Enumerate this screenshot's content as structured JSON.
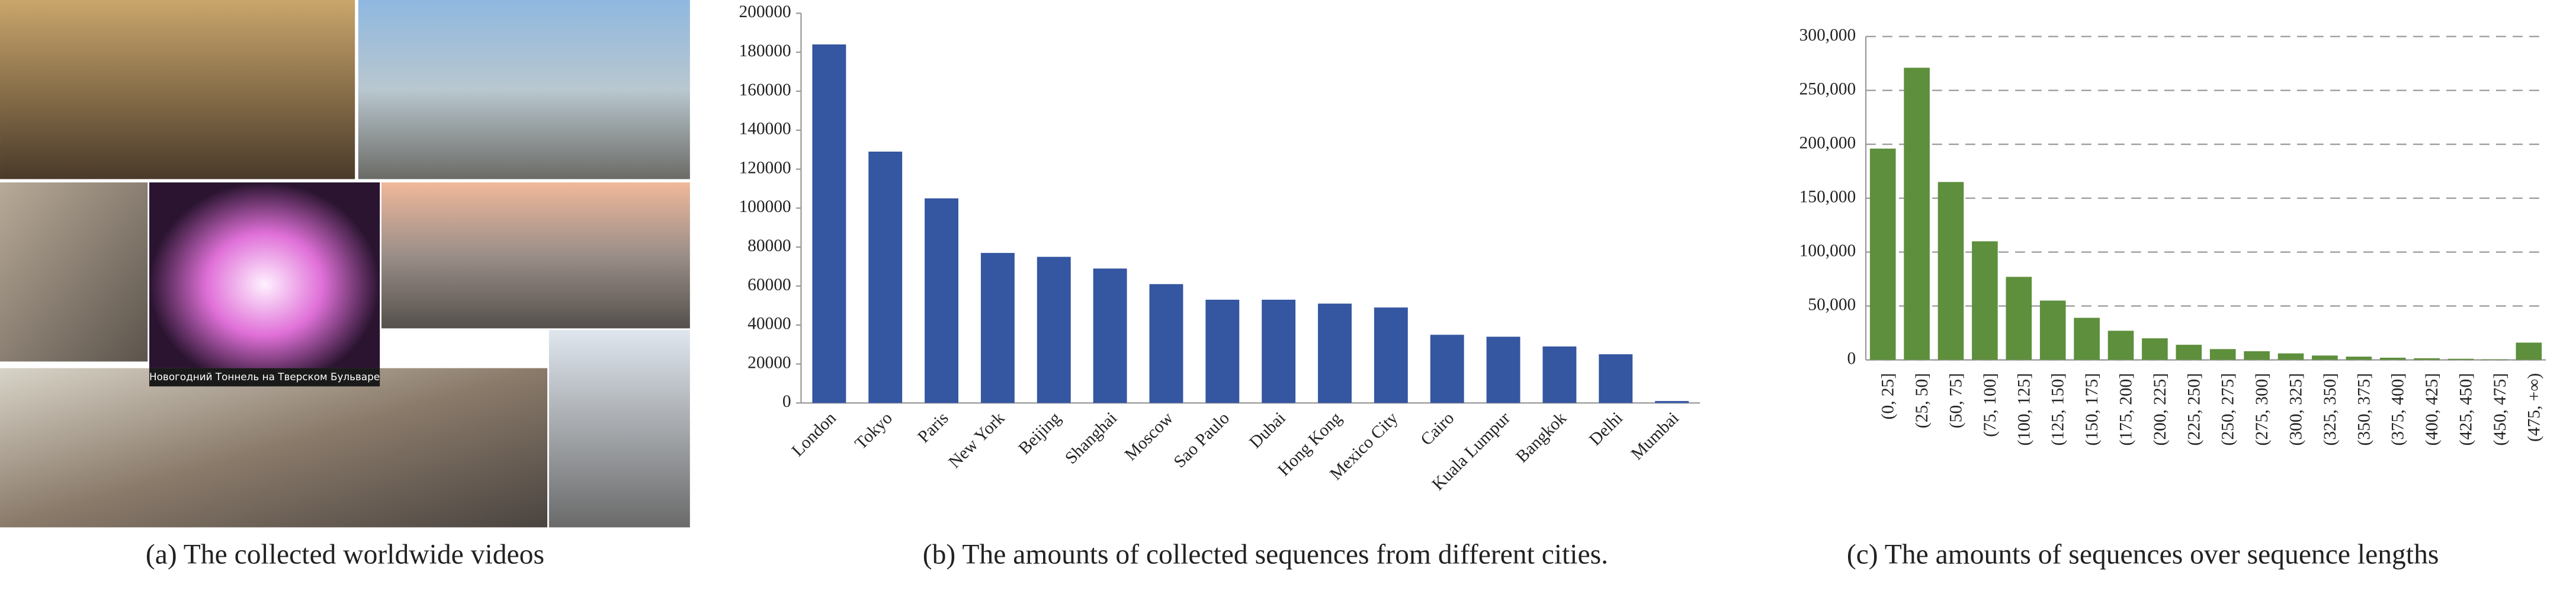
{
  "panel_a": {
    "caption": "(a) The collected worldwide videos",
    "overlay_text": "Новогодний Тоннель на Тверском Бульваре"
  },
  "chart_data": [
    {
      "type": "bar",
      "caption": "(b) The amounts of collected sequences from different cities.",
      "categories": [
        "London",
        "Tokyo",
        "Paris",
        "New York",
        "Beijing",
        "Shanghai",
        "Moscow",
        "Sao Paulo",
        "Dubai",
        "Hong Kong",
        "Mexico City",
        "Cairo",
        "Kuala Lumpur",
        "Bangkok",
        "Delhi",
        "Mumbai"
      ],
      "values": [
        184000,
        129000,
        105000,
        77000,
        75000,
        69000,
        61000,
        53000,
        53000,
        51000,
        49000,
        35000,
        34000,
        29000,
        25000,
        1000
      ],
      "color": "#3556a0",
      "ylim": [
        0,
        200000
      ],
      "yticks": [
        0,
        20000,
        40000,
        60000,
        80000,
        100000,
        120000,
        140000,
        160000,
        180000,
        200000
      ],
      "grid": false
    },
    {
      "type": "bar",
      "caption": "(c) The amounts of sequences over sequence lengths",
      "categories": [
        "(0, 25]",
        "(25, 50]",
        "(50, 75]",
        "(75, 100]",
        "(100, 125]",
        "(125, 150]",
        "(150, 175]",
        "(175, 200]",
        "(200, 225]",
        "(225, 250]",
        "(250, 275]",
        "(275, 300]",
        "(300, 325]",
        "(325, 350]",
        "(350, 375]",
        "(375, 400]",
        "(400, 425]",
        "(425, 450]",
        "(450, 475]",
        "(475, +∞)"
      ],
      "values": [
        196000,
        271000,
        165000,
        110000,
        77000,
        55000,
        39000,
        27000,
        20000,
        14000,
        10000,
        8000,
        6000,
        4000,
        3000,
        2000,
        1500,
        1000,
        500,
        16000
      ],
      "color": "#5e8f3c",
      "ylim": [
        0,
        300000
      ],
      "yticks": [
        0,
        {
          "value": 50000,
          "label": "50,000"
        },
        {
          "value": 100000,
          "label": "100,000"
        },
        {
          "value": 150000,
          "label": "150,000"
        },
        {
          "value": 200000,
          "label": "200,000"
        },
        {
          "value": 250000,
          "label": "250,000"
        },
        {
          "value": 300000,
          "label": "300,000"
        }
      ],
      "grid": true
    }
  ]
}
